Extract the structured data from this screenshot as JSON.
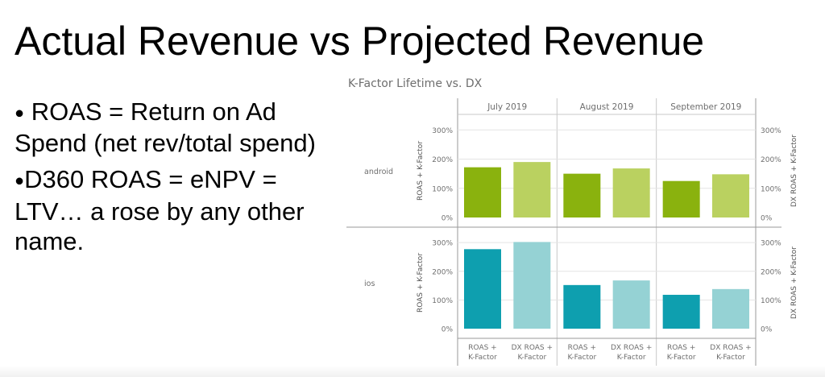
{
  "slide": {
    "title": "Actual Revenue vs Projected Revenue",
    "bullets": [
      "ROAS = Return on Ad Spend (net rev/total spend)",
      "D360 ROAS = eNPV = LTV… a rose by any other name."
    ],
    "bullet_glyph": "●"
  },
  "chart_data": {
    "type": "bar",
    "title": "K-Factor Lifetime vs. DX",
    "columns": [
      "July 2019",
      "August 2019",
      "September 2019"
    ],
    "rows": [
      "android",
      "ios"
    ],
    "bar_labels": [
      "ROAS + K-Factor",
      "DX ROAS + K-Factor"
    ],
    "ylabel_left": "ROAS + K-Factor",
    "ylabel_right": "DX ROAS + K-Factor",
    "y_ticks": [
      "0%",
      "100%",
      "200%",
      "300%"
    ],
    "ylim": [
      0,
      320
    ],
    "series": [
      {
        "name": "ROAS + K-Factor",
        "android": [
          172,
          150,
          125
        ],
        "ios": [
          277,
          152,
          118
        ]
      },
      {
        "name": "DX ROAS + K-Factor",
        "android": [
          190,
          168,
          148
        ],
        "ios": [
          302,
          168,
          138
        ]
      }
    ],
    "colors": {
      "android": [
        "#8ab20e",
        "#bad160"
      ],
      "ios": [
        "#0e9faf",
        "#95d2d4"
      ]
    },
    "grid": true
  }
}
